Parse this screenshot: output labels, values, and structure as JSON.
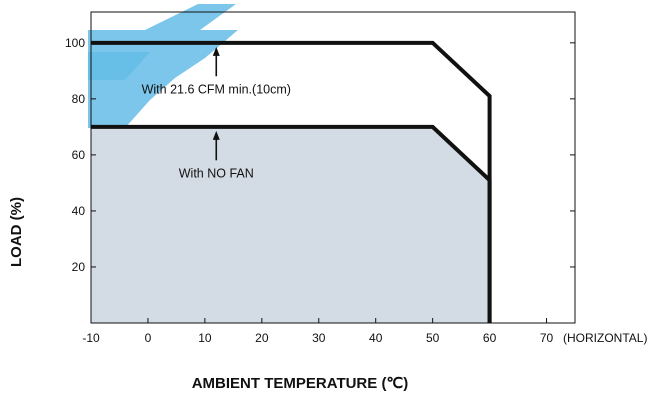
{
  "chart_data": {
    "type": "line",
    "xlabel": "AMBIENT TEMPERATURE (℃)",
    "ylabel": "LOAD (%)",
    "x_axis_suffix": "(HORIZONTAL)",
    "xlim": [
      -10,
      75
    ],
    "ylim": [
      0,
      111
    ],
    "x_ticks": [
      -10,
      0,
      10,
      20,
      30,
      40,
      50,
      60,
      70
    ],
    "y_ticks": [
      20,
      40,
      60,
      80,
      100
    ],
    "grid": false,
    "series": [
      {
        "name": "With 21.6 CFM min.(10cm)",
        "x": [
          -10,
          50,
          60,
          60
        ],
        "y": [
          100,
          100,
          81,
          0
        ]
      },
      {
        "name": "With NO FAN",
        "x": [
          -10,
          50,
          60,
          60
        ],
        "y": [
          70,
          70,
          51,
          0
        ]
      }
    ],
    "annotations": [
      {
        "text": "With 21.6 CFM min.(10cm)",
        "arrow_to": [
          12,
          100
        ],
        "text_at": [
          12,
          82
        ]
      },
      {
        "text": "With NO FAN",
        "arrow_to": [
          12,
          70
        ],
        "text_at": [
          12,
          52
        ]
      }
    ],
    "colors": {
      "line": "#111111",
      "fill": "#d3dce5",
      "watermark": "#64bce6"
    }
  }
}
